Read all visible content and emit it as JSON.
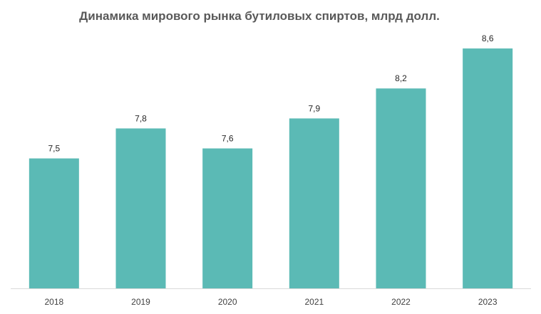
{
  "chart_data": {
    "type": "bar",
    "title": "Динамика мирового рынка бутиловых спиртов, млрд долл.",
    "categories": [
      "2018",
      "2019",
      "2020",
      "2021",
      "2022",
      "2023"
    ],
    "values": [
      7.5,
      7.8,
      7.6,
      7.9,
      8.2,
      8.6
    ],
    "data_labels": [
      "7,5",
      "7,8",
      "7,6",
      "7,9",
      "8,2",
      "8,6"
    ],
    "ylim": [
      6.2,
      8.8
    ],
    "grid": false,
    "legend": "none",
    "bar_color": "#5BBAB5",
    "axis_color": "#D9D9D9"
  }
}
